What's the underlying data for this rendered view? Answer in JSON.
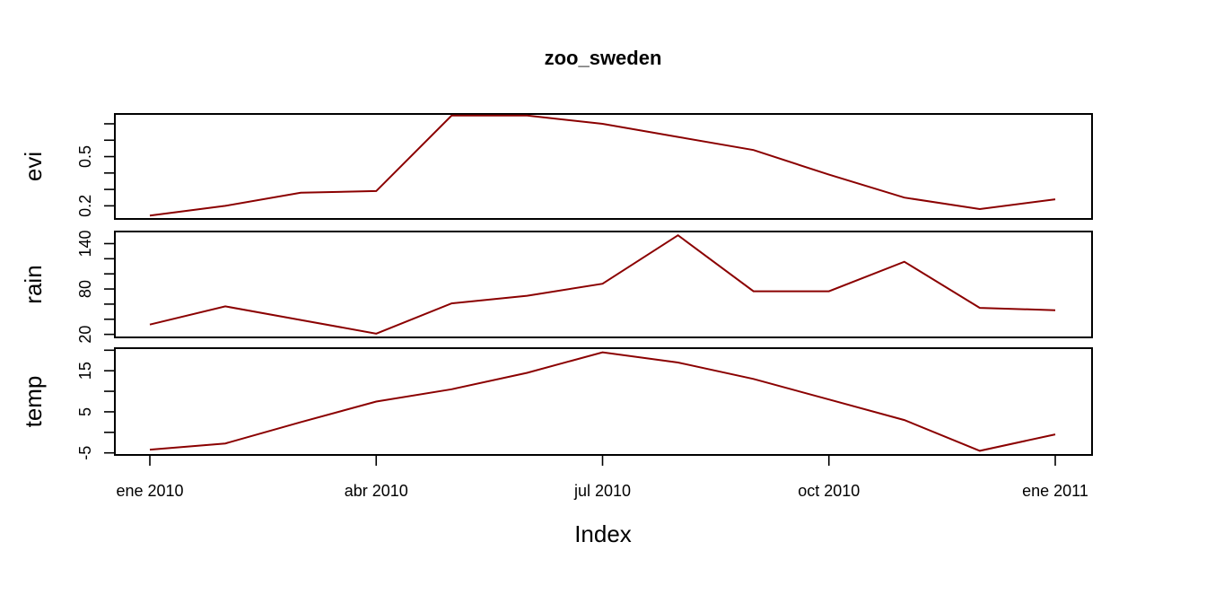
{
  "chart_data": {
    "type": "line",
    "title": "zoo_sweden",
    "xlabel": "Index",
    "x": [
      "2010-01",
      "2010-02",
      "2010-03",
      "2010-04",
      "2010-05",
      "2010-06",
      "2010-07",
      "2010-08",
      "2010-09",
      "2010-10",
      "2010-11",
      "2010-12",
      "2011-01"
    ],
    "x_ticks": [
      {
        "date": "2010-01",
        "label": "ene 2010"
      },
      {
        "date": "2010-04",
        "label": "abr 2010"
      },
      {
        "date": "2010-07",
        "label": "jul 2010"
      },
      {
        "date": "2010-10",
        "label": "oct 2010"
      },
      {
        "date": "2011-01",
        "label": "ene 2011"
      }
    ],
    "line_color": "#8B0000",
    "series": [
      {
        "name": "evi",
        "values": [
          0.14,
          0.2,
          0.28,
          0.29,
          0.75,
          0.75,
          0.7,
          0.62,
          0.54,
          0.39,
          0.25,
          0.18,
          0.24
        ],
        "ylim": [
          0.12,
          0.76
        ],
        "ticks": [
          0.2,
          0.3,
          0.4,
          0.5,
          0.6,
          0.7
        ],
        "tick_labels": [
          {
            "value": 0.2,
            "label": "0.2"
          },
          {
            "value": 0.5,
            "label": "0.5"
          }
        ]
      },
      {
        "name": "rain",
        "values": [
          33,
          57,
          39,
          21,
          61,
          71,
          87,
          151,
          77,
          77,
          116,
          55,
          52
        ],
        "ylim": [
          16,
          156
        ],
        "ticks": [
          20,
          40,
          60,
          80,
          100,
          120,
          140
        ],
        "tick_labels": [
          {
            "value": 20,
            "label": "20"
          },
          {
            "value": 80,
            "label": "80"
          },
          {
            "value": 140,
            "label": "140"
          }
        ]
      },
      {
        "name": "temp",
        "values": [
          -4.2,
          -2.7,
          2.5,
          7.5,
          10.5,
          14.5,
          19.5,
          17.0,
          13.0,
          8.0,
          3.0,
          -4.5,
          -0.5
        ],
        "ylim": [
          -5.5,
          20.5
        ],
        "ticks": [
          -5,
          0,
          5,
          10,
          15,
          20
        ],
        "tick_labels": [
          {
            "value": -5,
            "label": "-5"
          },
          {
            "value": 5,
            "label": "5"
          },
          {
            "value": 15,
            "label": "15"
          }
        ]
      }
    ]
  }
}
